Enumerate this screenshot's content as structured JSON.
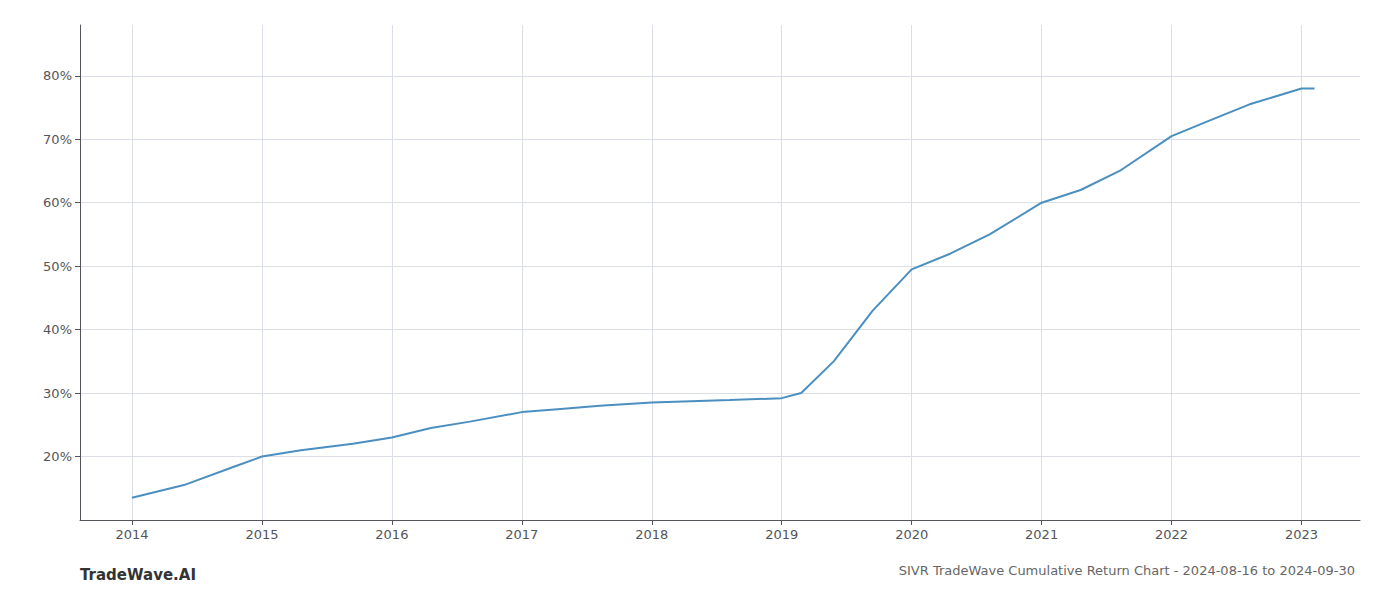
{
  "chart_data": {
    "type": "line",
    "title": "SIVR TradeWave Cumulative Return Chart - 2024-08-16 to 2024-09-30",
    "annotations": [
      "TradeWave.AI"
    ],
    "x": [
      2014.0,
      2014.4,
      2014.8,
      2015.0,
      2015.3,
      2015.7,
      2016.0,
      2016.3,
      2016.6,
      2017.0,
      2017.3,
      2017.6,
      2018.0,
      2018.3,
      2018.6,
      2019.0,
      2019.15,
      2019.4,
      2019.7,
      2020.0,
      2020.3,
      2020.6,
      2021.0,
      2021.3,
      2021.6,
      2022.0,
      2022.3,
      2022.6,
      2023.0,
      2023.1
    ],
    "values": [
      13.5,
      15.5,
      18.5,
      20.0,
      21.0,
      22.0,
      23.0,
      24.5,
      25.5,
      27.0,
      27.5,
      28.0,
      28.5,
      28.7,
      28.9,
      29.2,
      30.0,
      35.0,
      43.0,
      49.5,
      52.0,
      55.0,
      60.0,
      62.0,
      65.0,
      70.5,
      73.0,
      75.5,
      78.0,
      78.0
    ],
    "color": "#4a8fc0",
    "xlim": [
      2013.6,
      2023.45
    ],
    "ylim": [
      10,
      88
    ],
    "xticks": [
      2014,
      2015,
      2016,
      2017,
      2018,
      2019,
      2020,
      2021,
      2022,
      2023
    ],
    "yticks": [
      {
        "value": 20,
        "label": "20%"
      },
      {
        "value": 30,
        "label": "30%"
      },
      {
        "value": 40,
        "label": "40%"
      },
      {
        "value": 50,
        "label": "50%"
      },
      {
        "value": 60,
        "label": "60%"
      },
      {
        "value": 70,
        "label": "70%"
      },
      {
        "value": 80,
        "label": "80%"
      }
    ],
    "grid": true
  }
}
